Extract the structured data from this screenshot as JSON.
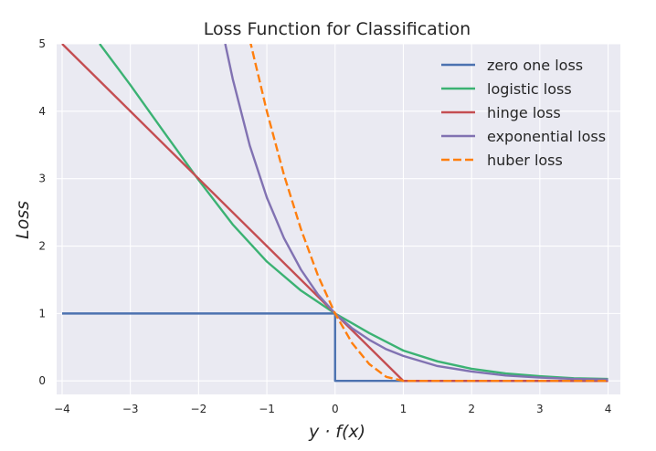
{
  "chart_data": {
    "type": "line",
    "title": "Loss Function for Classification",
    "xlabel": "y · f(x)",
    "ylabel": "Loss",
    "xlim": [
      -4.08,
      4.18
    ],
    "ylim": [
      -0.2,
      5.0
    ],
    "xticks": [
      -4,
      -3,
      -2,
      -1,
      0,
      1,
      2,
      3,
      4
    ],
    "xtick_labels": [
      "−4",
      "−3",
      "−2",
      "−1",
      "0",
      "1",
      "2",
      "3",
      "4"
    ],
    "yticks": [
      0,
      1,
      2,
      3,
      4,
      5
    ],
    "ytick_labels": [
      "0",
      "1",
      "2",
      "3",
      "4",
      "5"
    ],
    "grid": true,
    "legend_position": "top-right",
    "background": "#eaeaf2",
    "series": [
      {
        "name": "zero one loss",
        "color": "#4c72b0",
        "dash": "solid",
        "x": [
          -4,
          0,
          0,
          4
        ],
        "y": [
          1,
          1,
          0,
          0
        ]
      },
      {
        "name": "logistic loss",
        "color": "#3bb273",
        "dash": "solid",
        "x": [
          -3.45,
          -3.0,
          -2.5,
          -2.0,
          -1.5,
          -1.0,
          -0.5,
          0.0,
          0.5,
          1.0,
          1.5,
          2.0,
          2.5,
          3.0,
          3.5,
          4.0
        ],
        "y": [
          5.0,
          4.39,
          3.68,
          2.98,
          2.32,
          1.77,
          1.34,
          1.0,
          0.71,
          0.45,
          0.29,
          0.18,
          0.11,
          0.07,
          0.04,
          0.03
        ]
      },
      {
        "name": "hinge loss",
        "color": "#c44e52",
        "dash": "solid",
        "x": [
          -4,
          1,
          4
        ],
        "y": [
          5,
          0,
          0
        ]
      },
      {
        "name": "exponential loss",
        "color": "#8172b2",
        "dash": "solid",
        "x": [
          -1.61,
          -1.5,
          -1.25,
          -1.0,
          -0.75,
          -0.5,
          -0.25,
          0.0,
          0.25,
          0.5,
          0.75,
          1.0,
          1.5,
          2.0,
          2.5,
          3.0,
          3.5,
          4.0
        ],
        "y": [
          5.0,
          4.48,
          3.49,
          2.72,
          2.12,
          1.65,
          1.28,
          1.0,
          0.78,
          0.61,
          0.47,
          0.37,
          0.22,
          0.14,
          0.08,
          0.05,
          0.03,
          0.02
        ]
      },
      {
        "name": "huber loss",
        "color": "#ff7f0e",
        "dash": "dashed",
        "x": [
          -1.25,
          -1.0,
          -0.75,
          -0.5,
          -0.25,
          0.0,
          0.25,
          0.5,
          0.75,
          1.0,
          4.0
        ],
        "y": [
          5.06,
          4.0,
          3.06,
          2.25,
          1.56,
          1.0,
          0.56,
          0.25,
          0.06,
          0.0,
          0.0
        ]
      }
    ]
  }
}
